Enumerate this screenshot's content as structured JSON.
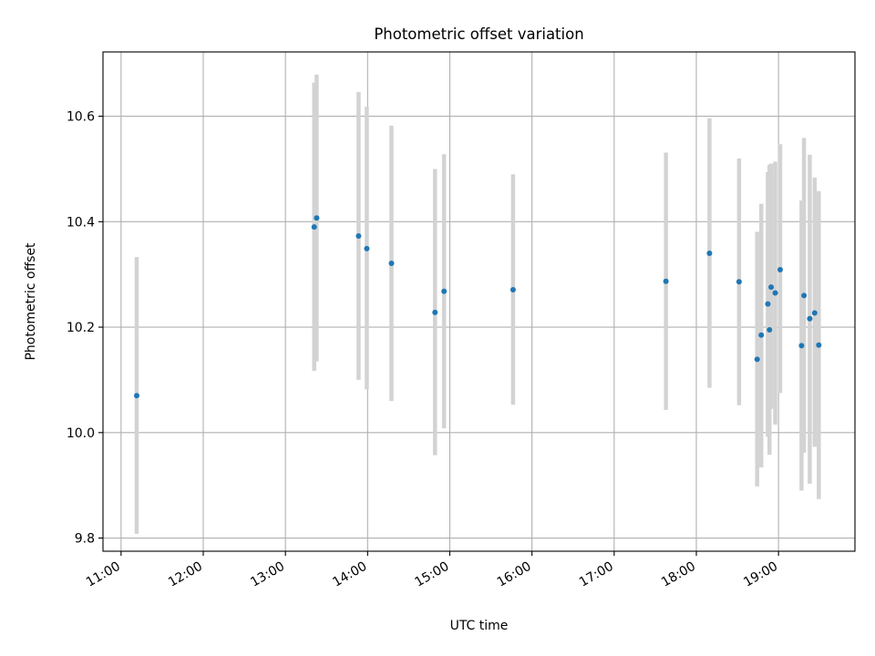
{
  "chart_data": {
    "type": "scatter",
    "title": "Photometric offset variation",
    "xlabel": "UTC time",
    "ylabel": "Photometric offset",
    "x_unit": "hour of day (UTC)",
    "xlim": [
      10.78,
      19.93
    ],
    "ylim": [
      9.775,
      10.722
    ],
    "x_ticks": [
      11,
      12,
      13,
      14,
      15,
      16,
      17,
      18,
      19
    ],
    "x_tick_labels": [
      "11:00",
      "12:00",
      "13:00",
      "14:00",
      "15:00",
      "16:00",
      "17:00",
      "18:00",
      "19:00"
    ],
    "y_ticks": [
      9.8,
      10.0,
      10.2,
      10.4,
      10.6
    ],
    "y_tick_labels": [
      "9.8",
      "10.0",
      "10.2",
      "10.4",
      "10.6"
    ],
    "grid": true,
    "colors": {
      "point": "#1f77b4",
      "errorbar": "#d3d3d3"
    },
    "points": [
      {
        "x": 11.19,
        "y": 10.07,
        "ylow": 9.808,
        "yhigh": 10.333
      },
      {
        "x": 13.35,
        "y": 10.39,
        "ylow": 10.117,
        "yhigh": 10.664
      },
      {
        "x": 13.38,
        "y": 10.407,
        "ylow": 10.135,
        "yhigh": 10.679
      },
      {
        "x": 13.89,
        "y": 10.373,
        "ylow": 10.1,
        "yhigh": 10.646
      },
      {
        "x": 13.99,
        "y": 10.349,
        "ylow": 10.082,
        "yhigh": 10.618
      },
      {
        "x": 14.29,
        "y": 10.321,
        "ylow": 10.06,
        "yhigh": 10.582
      },
      {
        "x": 14.82,
        "y": 10.228,
        "ylow": 9.957,
        "yhigh": 10.5
      },
      {
        "x": 14.93,
        "y": 10.268,
        "ylow": 10.008,
        "yhigh": 10.528
      },
      {
        "x": 15.77,
        "y": 10.271,
        "ylow": 10.053,
        "yhigh": 10.49
      },
      {
        "x": 17.63,
        "y": 10.287,
        "ylow": 10.043,
        "yhigh": 10.531
      },
      {
        "x": 18.16,
        "y": 10.34,
        "ylow": 10.085,
        "yhigh": 10.596
      },
      {
        "x": 18.52,
        "y": 10.286,
        "ylow": 10.052,
        "yhigh": 10.52
      },
      {
        "x": 18.74,
        "y": 10.139,
        "ylow": 9.898,
        "yhigh": 10.381
      },
      {
        "x": 18.79,
        "y": 10.185,
        "ylow": 9.934,
        "yhigh": 10.434
      },
      {
        "x": 18.87,
        "y": 10.244,
        "ylow": 9.992,
        "yhigh": 10.494
      },
      {
        "x": 18.89,
        "y": 10.195,
        "ylow": 9.958,
        "yhigh": 10.508
      },
      {
        "x": 18.91,
        "y": 10.276,
        "ylow": 10.045,
        "yhigh": 10.51
      },
      {
        "x": 18.96,
        "y": 10.265,
        "ylow": 10.015,
        "yhigh": 10.514
      },
      {
        "x": 19.02,
        "y": 10.309,
        "ylow": 10.075,
        "yhigh": 10.547
      },
      {
        "x": 19.28,
        "y": 10.165,
        "ylow": 9.89,
        "yhigh": 10.44
      },
      {
        "x": 19.31,
        "y": 10.26,
        "ylow": 9.962,
        "yhigh": 10.559
      },
      {
        "x": 19.38,
        "y": 10.216,
        "ylow": 9.903,
        "yhigh": 10.527
      },
      {
        "x": 19.44,
        "y": 10.227,
        "ylow": 9.973,
        "yhigh": 10.484
      },
      {
        "x": 19.49,
        "y": 10.166,
        "ylow": 9.874,
        "yhigh": 10.458
      }
    ]
  }
}
